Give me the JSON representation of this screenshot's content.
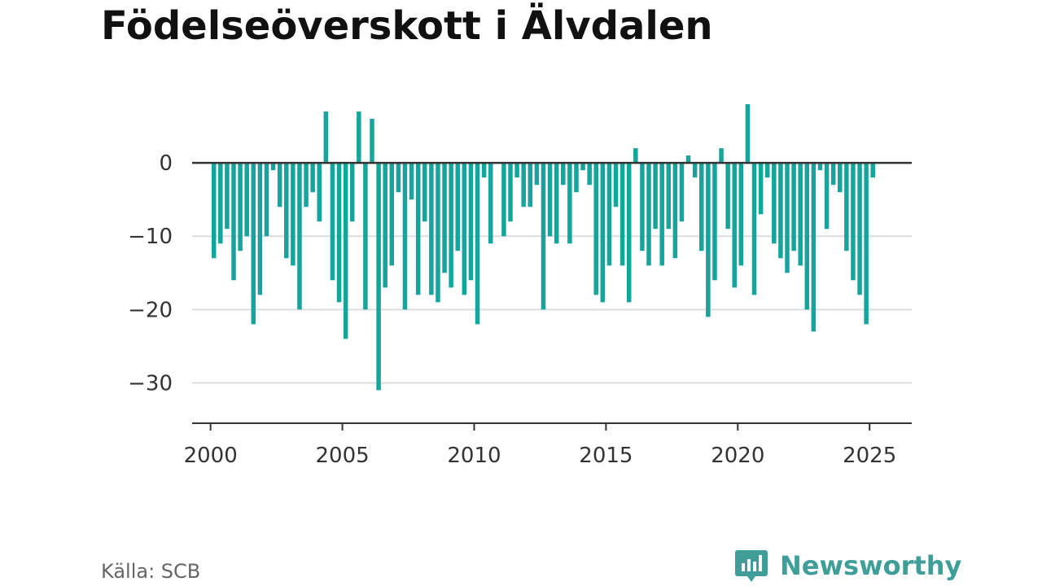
{
  "title": "Födelseöverskott i Älvdalen",
  "source": "Källa: SCB",
  "brand": {
    "name": "Newsworthy",
    "icon": "bar-chart-speech-bubble-icon",
    "color": "#3f9e98"
  },
  "chart_data": {
    "type": "bar",
    "title": "Födelseöverskott i Älvdalen",
    "xlabel": "",
    "ylabel": "",
    "bar_color": "#16a59d",
    "xlim": [
      1999.3,
      2026.6
    ],
    "ylim": [
      -35.5,
      10
    ],
    "x_ticks": [
      2000,
      2005,
      2010,
      2015,
      2020,
      2025
    ],
    "x_tick_labels": [
      "2000",
      "2005",
      "2010",
      "2015",
      "2020",
      "2025"
    ],
    "y_ticks": [
      0,
      -10,
      -20,
      -30
    ],
    "y_tick_labels": [
      "0",
      "−10",
      "−20",
      "−30"
    ],
    "grid": true,
    "start": 2000.125,
    "step": 0.25,
    "values": [
      -13,
      -11,
      -9,
      -16,
      -12,
      -10,
      -22,
      -18,
      -10,
      -1,
      -6,
      -13,
      -14,
      -20,
      -6,
      -4,
      -8,
      7,
      -16,
      -19,
      -24,
      -8,
      7,
      -20,
      6,
      -31,
      -17,
      -14,
      -4,
      -20,
      -5,
      -18,
      -8,
      -18,
      -19,
      -15,
      -17,
      -12,
      -18,
      -16,
      -22,
      -2,
      -11,
      0,
      -10,
      -8,
      -2,
      -6,
      -6,
      -3,
      -20,
      -10,
      -11,
      -3,
      -11,
      -4,
      -1,
      -3,
      -18,
      -19,
      -14,
      -6,
      -14,
      -19,
      2,
      -12,
      -14,
      -9,
      -14,
      -9,
      -13,
      -8,
      1,
      -2,
      -12,
      -21,
      -16,
      2,
      -9,
      -17,
      -14,
      8,
      -18,
      -7,
      -2,
      -11,
      -13,
      -15,
      -12,
      -14,
      -20,
      -23,
      -1,
      -9,
      -3,
      -4,
      -12,
      -16,
      -18,
      -22,
      -2
    ]
  }
}
